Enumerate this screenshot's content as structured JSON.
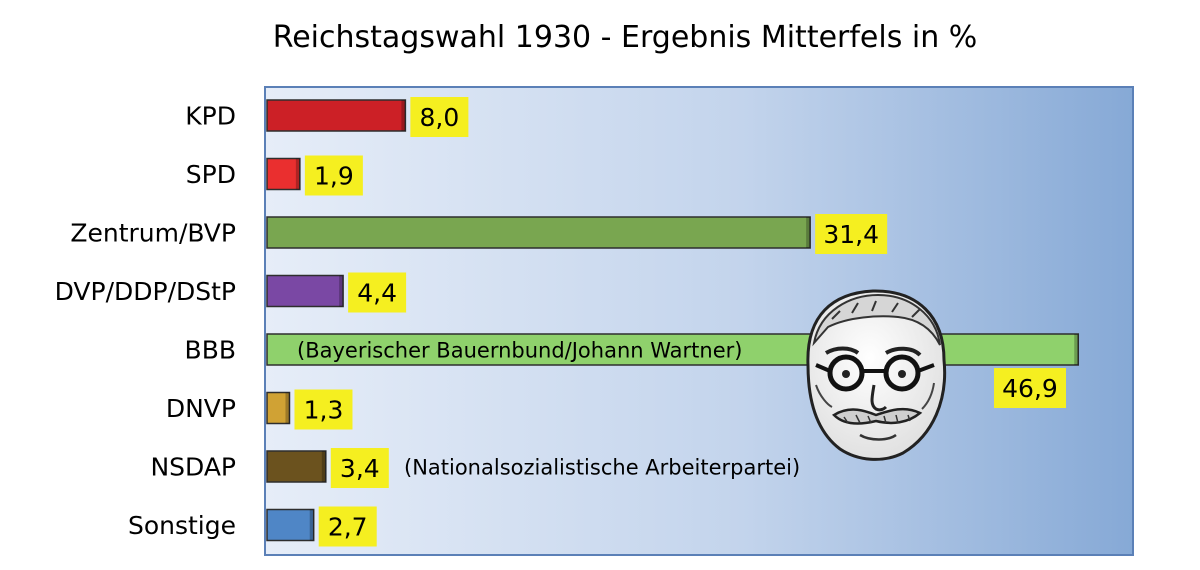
{
  "chart_data": {
    "type": "bar",
    "orientation": "horizontal",
    "title": "Reichstagswahl 1930 - Ergebnis Mitterfels in %",
    "categories": [
      "KPD",
      "SPD",
      "Zentrum/BVP",
      "DVP/DDP/DStP",
      "BBB",
      "DNVP",
      "NSDAP",
      "Sonstige"
    ],
    "values": [
      8.0,
      1.9,
      31.4,
      4.4,
      46.9,
      1.3,
      3.4,
      2.7
    ],
    "value_labels": [
      "8,0",
      "1,9",
      "31,4",
      "4,4",
      "46,9",
      "1,3",
      "3,4",
      "2,7"
    ],
    "bar_colors": [
      "#cc2026",
      "#ea2f2f",
      "#79a650",
      "#7a48a4",
      "#8fd16c",
      "#d0a234",
      "#6b521e",
      "#4f86c6"
    ],
    "annotations": [
      {
        "category": "BBB",
        "text": "(Bayerischer Bauernbund/Johann Wartner)"
      },
      {
        "category": "NSDAP",
        "text": "(Nationalsozialistische Arbeiterpartei)"
      }
    ],
    "xlim": [
      0,
      47
    ],
    "xlabel": "",
    "ylabel": "",
    "grid": false,
    "legend": "none",
    "plot_background": "gradient light-to-blue",
    "label_box_color": "#f5ef20",
    "portrait_icon": "man-portrait-icon"
  }
}
